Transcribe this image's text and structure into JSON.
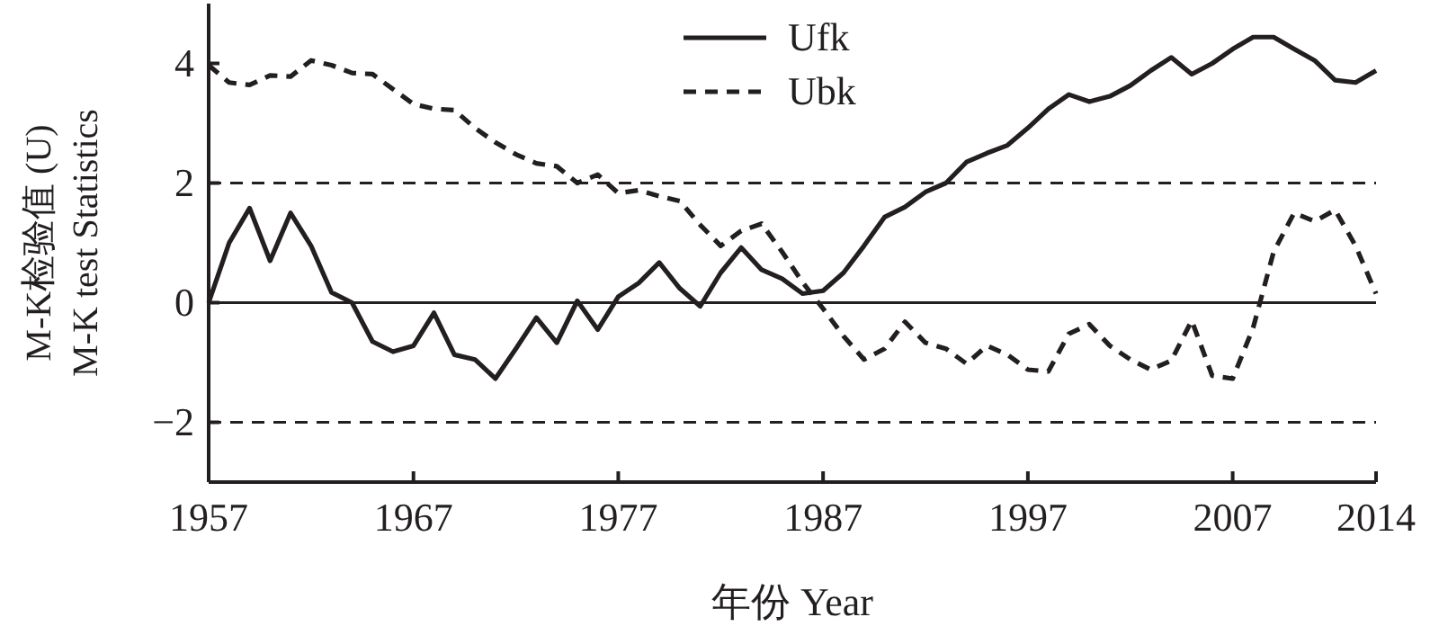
{
  "chart_data": {
    "type": "line",
    "ylabel": "M-K检验值 (U)\nM-K test Statistics",
    "xlabel": "年份 Year",
    "x": [
      1957,
      1958,
      1959,
      1960,
      1961,
      1962,
      1963,
      1964,
      1965,
      1966,
      1967,
      1968,
      1969,
      1970,
      1971,
      1972,
      1973,
      1974,
      1975,
      1976,
      1977,
      1978,
      1979,
      1980,
      1981,
      1982,
      1983,
      1984,
      1985,
      1986,
      1987,
      1988,
      1989,
      1990,
      1991,
      1992,
      1993,
      1994,
      1995,
      1996,
      1997,
      1998,
      1999,
      2000,
      2001,
      2002,
      2003,
      2004,
      2005,
      2006,
      2007,
      2008,
      2009,
      2010,
      2011,
      2012,
      2013,
      2014
    ],
    "series": [
      {
        "name": "Ufk",
        "color": "#231f20",
        "line_style": "solid",
        "values": [
          0.0,
          1.0,
          1.58,
          0.7,
          1.5,
          0.95,
          0.17,
          0.0,
          -0.65,
          -0.82,
          -0.72,
          -0.17,
          -0.87,
          -0.95,
          -1.27,
          -0.77,
          -0.25,
          -0.67,
          0.03,
          -0.45,
          0.1,
          0.33,
          0.67,
          0.24,
          -0.06,
          0.5,
          0.92,
          0.55,
          0.4,
          0.15,
          0.2,
          0.5,
          0.95,
          1.43,
          1.6,
          1.85,
          2.0,
          2.35,
          2.5,
          2.63,
          2.92,
          3.24,
          3.48,
          3.36,
          3.45,
          3.63,
          3.88,
          4.1,
          3.82,
          4.0,
          4.24,
          4.44,
          4.44,
          4.24,
          4.05,
          3.72,
          3.68,
          3.88
        ]
      },
      {
        "name": "Ubk",
        "color": "#231f20",
        "line_style": "dashed",
        "values": [
          3.97,
          3.68,
          3.64,
          3.8,
          3.78,
          4.05,
          3.97,
          3.84,
          3.82,
          3.57,
          3.32,
          3.24,
          3.22,
          2.92,
          2.68,
          2.48,
          2.33,
          2.28,
          2.0,
          2.14,
          1.83,
          1.88,
          1.78,
          1.7,
          1.3,
          0.95,
          1.2,
          1.32,
          0.85,
          0.34,
          -0.1,
          -0.56,
          -0.95,
          -0.77,
          -0.32,
          -0.67,
          -0.77,
          -1.02,
          -0.72,
          -0.87,
          -1.12,
          -1.15,
          -0.52,
          -0.36,
          -0.72,
          -0.95,
          -1.12,
          -0.97,
          -0.3,
          -1.22,
          -1.27,
          -0.42,
          0.85,
          1.5,
          1.36,
          1.55,
          0.95,
          0.15
        ]
      }
    ],
    "xlim": [
      1957,
      2014
    ],
    "xticks": [
      1957,
      1967,
      1977,
      1987,
      1997,
      2007,
      2014
    ],
    "ylim": [
      -3,
      5
    ],
    "yticks": [
      -2,
      0,
      2,
      4
    ],
    "ref_lines": [
      {
        "axis": "y",
        "value": 2,
        "line_style": "dashed",
        "color": "#231f20"
      },
      {
        "axis": "y",
        "value": 0,
        "line_style": "solid",
        "color": "#231f20"
      },
      {
        "axis": "y",
        "value": -2,
        "line_style": "dashed",
        "color": "#231f20"
      }
    ],
    "legend": "top",
    "grid": false
  }
}
